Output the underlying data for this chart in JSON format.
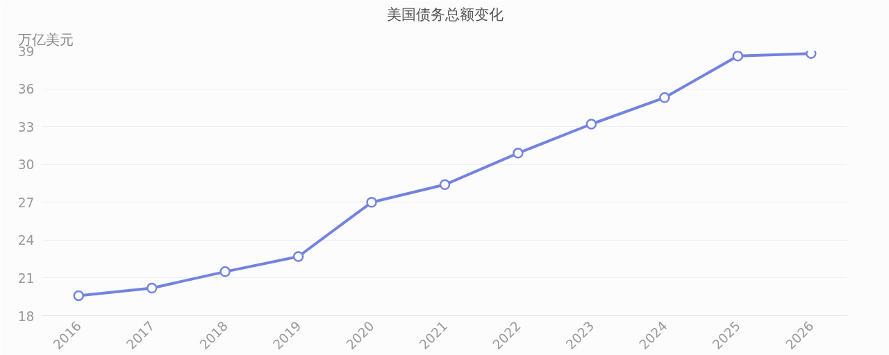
{
  "chart_data": {
    "type": "line",
    "title": "美国债务总额变化",
    "ylabel": "万亿美元",
    "categories": [
      "2016",
      "2017",
      "2018",
      "2019",
      "2020",
      "2021",
      "2022",
      "2023",
      "2024",
      "2025",
      "2026"
    ],
    "series": [
      {
        "color": "#7383e0",
        "values": [
          19.6,
          20.2,
          21.5,
          22.7,
          27.0,
          28.4,
          30.9,
          33.2,
          35.3,
          38.6,
          38.8
        ]
      }
    ],
    "ylim": [
      18,
      39
    ],
    "yticks": [
      18,
      21,
      24,
      27,
      30,
      33,
      36,
      39
    ],
    "grid": "y",
    "marker": "circle",
    "line_style": "solid"
  }
}
